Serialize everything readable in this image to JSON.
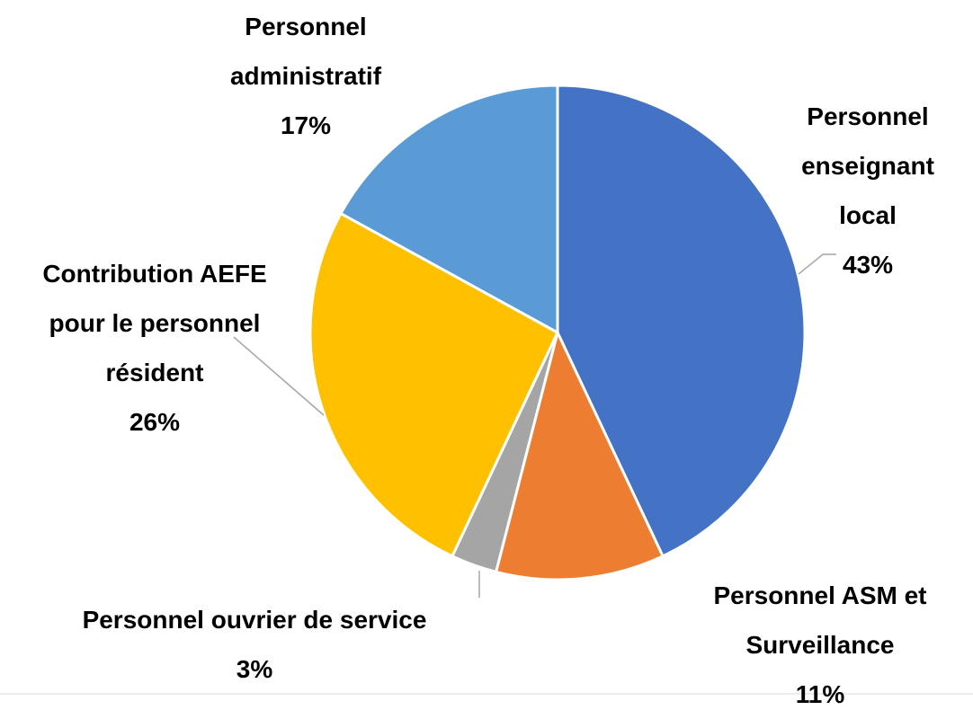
{
  "chart_data": {
    "type": "pie",
    "categories": [
      "Personnel enseignant local",
      "Personnel ASM et Surveillance",
      "Personnel ouvrier de service",
      "Contribution AEFE pour le personnel résident",
      "Personnel administratif"
    ],
    "values": [
      43,
      11,
      3,
      26,
      17
    ],
    "value_labels": [
      "43%",
      "11%",
      "3%",
      "26%",
      "17%"
    ],
    "colors": [
      "#4472c4",
      "#ed7d31",
      "#a5a5a5",
      "#ffc000",
      "#5b9bd5"
    ]
  }
}
